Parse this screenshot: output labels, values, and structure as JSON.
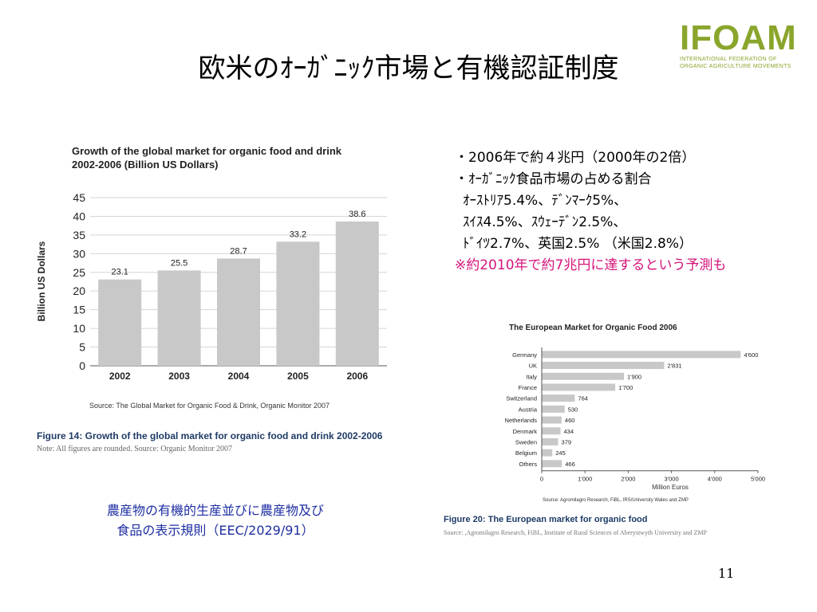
{
  "slide": {
    "title": "欧米のｵｰｶﾞﾆｯｸ市場と有機認証制度",
    "page_number": "11",
    "logo": {
      "mark": "IFOAM",
      "line1": "INTERNATIONAL FEDERATION OF",
      "line2": "ORGANIC AGRICULTURE MOVEMENTS",
      "color": "#8aa52c"
    },
    "bullets": [
      "・2006年で約４兆円（2000年の2倍）",
      "・ｵｰｶﾞﾆｯｸ食品市場の占める割合",
      "ｵｰｽﾄﾘｱ5.4%、ﾃﾞﾝﾏｰｸ5%、",
      "ｽｲｽ4.5%、ｽｳｪｰﾃﾞﾝ2.5%、",
      "ﾄﾞｲﾂ2.7%、英国2.5% （米国2.8%）"
    ],
    "note": "※約2010年で約7兆円に達するという予測も",
    "note_color": "#d4147a",
    "caption_line1": "農産物の有機的生産並びに農産物及び",
    "caption_line2": "食品の表示規則（EEC/2029/91）",
    "caption_color": "#1f2fa3"
  },
  "chart_data": [
    {
      "type": "bar",
      "title": "Growth of the global market for organic food and drink 2002-2006 (Billion US Dollars)",
      "title_line1": "Growth of the global market for organic food and drink",
      "title_line2": "2002-2006 (Billion US Dollars)",
      "ylabel": "Billion US Dollars",
      "categories": [
        "2002",
        "2003",
        "2004",
        "2005",
        "2006"
      ],
      "values": [
        23.1,
        25.5,
        28.7,
        33.2,
        38.6
      ],
      "data_labels": [
        "23.1",
        "25.5",
        "28.7",
        "33.2",
        "38.6"
      ],
      "ylim": [
        0,
        45
      ],
      "yticks": [
        "0",
        "5",
        "10",
        "15",
        "20",
        "25",
        "30",
        "35",
        "40",
        "45"
      ],
      "grid": true,
      "bar_color": "#c8c8c8",
      "source": "Source: The Global Market for Organic Food & Drink, Organic Monitor 2007",
      "figure_caption": "Figure 14: Growth of the global market for organic food and drink 2002-2006",
      "figure_note": "Note: All figures are rounded. Source: Organic Monitor 2007"
    },
    {
      "type": "bar",
      "orientation": "horizontal",
      "title": "The European Market for Organic Food 2006",
      "xlabel": "Million Euros",
      "categories": [
        "Germany",
        "UK",
        "Italy",
        "France",
        "Switzerland",
        "Austria",
        "Netherlands",
        "Denmark",
        "Sweden",
        "Belgium",
        "Others"
      ],
      "values": [
        4600,
        2831,
        1900,
        1700,
        764,
        530,
        460,
        434,
        379,
        245,
        466
      ],
      "data_labels": [
        "4'600",
        "2'831",
        "1'900",
        "1'700",
        "764",
        "530",
        "460",
        "434",
        "379",
        "245",
        "466"
      ],
      "xlim": [
        0,
        5000
      ],
      "xticks": [
        "0",
        "1'000",
        "2'000",
        "3'000",
        "4'000",
        "5'000"
      ],
      "bar_color": "#c8c8c8",
      "source": "Source: Agromilagro Research, FiBL, IRS/University Wales and ZMP",
      "figure_caption": "Figure 20: The European market for organic food",
      "figure_note": "Source: ,Agromilagro Research, FiBL, Institute of Rural Sciences of Aberystwyth University and ZMP"
    }
  ]
}
